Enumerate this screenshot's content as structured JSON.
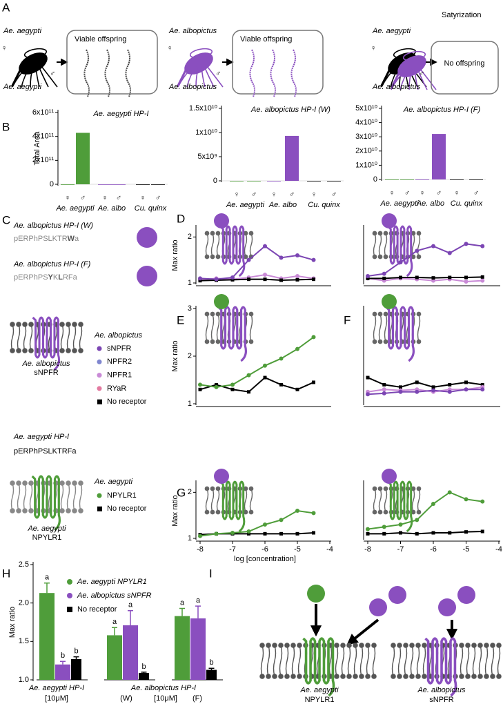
{
  "panel_labels": {
    "a": "A",
    "b": "B",
    "c": "C",
    "d": "D",
    "e": "E",
    "f": "F",
    "g": "G",
    "h": "H",
    "i": "I"
  },
  "symbols": {
    "female": "♀",
    "male": "♂"
  },
  "panel_a": {
    "title": "Satyrization",
    "crosses": [
      {
        "female": "Ae. aegypti",
        "male": "Ae. aegypti",
        "result": "Viable offspring"
      },
      {
        "female": "Ae. albopictus",
        "male": "Ae. albopictus",
        "result": "Viable offspring"
      },
      {
        "female": "Ae. aegypti",
        "male": "Ae. albopictus",
        "result": "No offspring"
      }
    ]
  },
  "panel_c": {
    "peptides": [
      {
        "name": "Ae. albopictus HP-I (W)",
        "seq": [
          "pERPhPSLKTR",
          "W",
          "a"
        ]
      },
      {
        "name": "Ae. albopictus HP-I (F)",
        "seq": [
          "pERPhPS",
          "Y",
          "K",
          "L",
          "RFa"
        ]
      }
    ],
    "albo_species": "Ae. albopictus",
    "albo_receptor": [
      "Ae. albopictus",
      "sNPFR"
    ],
    "albo_legend": [
      {
        "name": "sNPFR",
        "color": "#7b45b3",
        "marker": "circle"
      },
      {
        "name": "NPFR2",
        "color": "#7f86cf",
        "marker": "circle"
      },
      {
        "name": "NPFR1",
        "color": "#c98ad6",
        "marker": "circle"
      },
      {
        "name": "RYaR",
        "color": "#e37aa0",
        "marker": "circle"
      },
      {
        "name": "No receptor",
        "color": "#000000",
        "marker": "square"
      }
    ],
    "aeg_peptide": "Ae. aegypti HP-I",
    "aeg_seq": "pERPhPSLKTRFa",
    "aeg_species": "Ae. aegypti",
    "aeg_legend": [
      {
        "name": "NPYLR1",
        "color": "#4f9d3a",
        "marker": "circle"
      },
      {
        "name": "No receptor",
        "color": "#000000",
        "marker": "square"
      }
    ],
    "aeg_receptor": [
      "Ae. aegypti",
      "NPYLR1"
    ]
  },
  "panel_i": {
    "receptors": [
      [
        "Ae. aegypti",
        "NPYLR1"
      ],
      [
        "Ae. albopictus",
        "sNPFR"
      ]
    ]
  },
  "chart_data": [
    {
      "type": "bar",
      "title": "Ae. aegypti HP-I",
      "title_color": "#4f9d3a",
      "ylabel": "Total Area",
      "categories": [
        "♀",
        "♂",
        "♀",
        "♂",
        "♀",
        "♂"
      ],
      "group_labels": [
        "Ae. aegypti",
        "Ae. albo",
        "Cu. quinx"
      ],
      "colors": [
        "#4f9d3a",
        "#4f9d3a",
        "#8a4fbf",
        "#8a4fbf",
        "#000000",
        "#000000"
      ],
      "values": [
        0,
        430000000000,
        0,
        0,
        0,
        0
      ],
      "ylim": [
        0,
        600000000000
      ],
      "yticks": [
        0,
        {
          "value": 200000000000,
          "label": "2x10¹¹"
        },
        {
          "value": 400000000000,
          "label": "4x10¹¹"
        },
        {
          "value": 600000000000,
          "label": "6x10¹¹"
        }
      ]
    },
    {
      "type": "bar",
      "title": "Ae. albopictus HP-I (W)",
      "title_color": "#8a4fbf",
      "categories": [
        "♀",
        "♂",
        "♀",
        "♂",
        "♀",
        "♂"
      ],
      "group_labels": [
        "Ae. aegypti",
        "Ae. albo",
        "Cu. quinx"
      ],
      "colors": [
        "#4f9d3a",
        "#4f9d3a",
        "#8a4fbf",
        "#8a4fbf",
        "#000000",
        "#000000"
      ],
      "values": [
        0,
        0,
        0,
        9300000000,
        0,
        0
      ],
      "ylim": [
        0,
        15000000000
      ],
      "yticks": [
        0,
        {
          "value": 5000000000,
          "label": "5x10⁹"
        },
        {
          "value": 10000000000,
          "label": "1x10¹⁰"
        },
        {
          "value": 15000000000,
          "label": "1.5x10¹⁰"
        }
      ]
    },
    {
      "type": "bar",
      "title": "Ae. albopictus HP-I (F)",
      "title_color": "#8a4fbf",
      "categories": [
        "♀",
        "♂",
        "♀",
        "♂",
        "♀",
        "♂"
      ],
      "group_labels": [
        "Ae. aegypti",
        "Ae. albo",
        "Cu. quinx"
      ],
      "colors": [
        "#4f9d3a",
        "#4f9d3a",
        "#8a4fbf",
        "#8a4fbf",
        "#000000",
        "#000000"
      ],
      "values": [
        0,
        0,
        0,
        32000000000,
        0,
        0
      ],
      "ylim": [
        0,
        50000000000
      ],
      "yticks": [
        0,
        {
          "value": 10000000000,
          "label": "1x10¹⁰"
        },
        {
          "value": 20000000000,
          "label": "2x10¹⁰"
        },
        {
          "value": 30000000000,
          "label": "3x10¹⁰"
        },
        {
          "value": 40000000000,
          "label": "4x10¹⁰"
        },
        {
          "value": 50000000000,
          "label": "5x10¹⁰"
        }
      ]
    },
    {
      "type": "line",
      "ylabel": "Max ratio",
      "x": [
        -8,
        -7.5,
        -7,
        -6.5,
        -6,
        -5.5,
        -5,
        -4.5
      ],
      "xlim": [
        -8,
        -4
      ],
      "ylim": [
        1,
        2.2
      ],
      "yticks": [
        1,
        2
      ],
      "series": [
        {
          "color": "#c98ad6",
          "marker": "circle",
          "values": [
            1.07,
            1.1,
            1.08,
            1.12,
            1.18,
            1.1,
            1.15,
            1.1
          ]
        },
        {
          "color": "#000000",
          "marker": "square",
          "values": [
            1.05,
            1.06,
            1.07,
            1.08,
            1.08,
            1.06,
            1.07,
            1.08
          ]
        },
        {
          "color": "#7b45b3",
          "marker": "circle",
          "values": [
            1.1,
            1.08,
            1.12,
            1.5,
            1.8,
            1.55,
            1.6,
            1.5
          ]
        }
      ]
    },
    {
      "type": "line",
      "x": [
        -8,
        -7.5,
        -7,
        -6.5,
        -6,
        -5.5,
        -5,
        -4.5
      ],
      "xlim": [
        -8,
        -4
      ],
      "ylim": [
        1,
        2.2
      ],
      "series": [
        {
          "color": "#c98ad6",
          "marker": "circle",
          "values": [
            1.1,
            1.05,
            1.1,
            1.08,
            1.05,
            1.08,
            1.03,
            1.05
          ]
        },
        {
          "color": "#000000",
          "marker": "square",
          "values": [
            1.1,
            1.1,
            1.12,
            1.12,
            1.11,
            1.12,
            1.12,
            1.13
          ]
        },
        {
          "color": "#7b45b3",
          "marker": "circle",
          "values": [
            1.15,
            1.2,
            1.45,
            1.7,
            1.8,
            1.65,
            1.85,
            1.8
          ]
        }
      ]
    },
    {
      "type": "line",
      "ylabel": "Max ratio",
      "x": [
        -8,
        -7.5,
        -7,
        -6.5,
        -6,
        -5.5,
        -5,
        -4.5
      ],
      "xlim": [
        -8,
        -4
      ],
      "ylim": [
        1,
        3
      ],
      "yticks": [
        1,
        2,
        3
      ],
      "series": [
        {
          "color": "#000000",
          "marker": "square",
          "values": [
            1.3,
            1.4,
            1.3,
            1.25,
            1.55,
            1.4,
            1.3,
            1.45
          ]
        },
        {
          "color": "#4f9d3a",
          "marker": "circle",
          "values": [
            1.4,
            1.35,
            1.4,
            1.6,
            1.8,
            1.95,
            2.15,
            2.4
          ]
        }
      ]
    },
    {
      "type": "line",
      "x": [
        -8,
        -7.5,
        -7,
        -6.5,
        -6,
        -5.5,
        -5,
        -4.5
      ],
      "xlim": [
        -8,
        -4
      ],
      "ylim": [
        1,
        3
      ],
      "series": [
        {
          "color": "#000000",
          "marker": "square",
          "values": [
            1.55,
            1.4,
            1.35,
            1.45,
            1.35,
            1.4,
            1.45,
            1.4
          ]
        },
        {
          "color": "#c98ad6",
          "marker": "circle",
          "values": [
            1.25,
            1.3,
            1.28,
            1.3,
            1.25,
            1.3,
            1.3,
            1.35
          ]
        },
        {
          "color": "#7b45b3",
          "marker": "circle",
          "values": [
            1.2,
            1.22,
            1.25,
            1.25,
            1.28,
            1.25,
            1.3,
            1.3
          ]
        }
      ]
    },
    {
      "type": "line",
      "ylabel": "Max ratio",
      "xlabel": "log [concentration]",
      "x": [
        -8,
        -7.5,
        -7,
        -6.5,
        -6,
        -5.5,
        -5,
        -4.5
      ],
      "xlim": [
        -8,
        -4
      ],
      "xticks": [
        -8,
        -7,
        -6,
        -5,
        -4
      ],
      "ylim": [
        1,
        2.2
      ],
      "yticks": [
        1,
        2
      ],
      "series": [
        {
          "color": "#000000",
          "marker": "square",
          "values": [
            1.08,
            1.1,
            1.1,
            1.1,
            1.1,
            1.1,
            1.1,
            1.12
          ]
        },
        {
          "color": "#4f9d3a",
          "marker": "circle",
          "values": [
            1.05,
            1.1,
            1.12,
            1.15,
            1.3,
            1.4,
            1.6,
            1.55
          ]
        }
      ]
    },
    {
      "type": "line",
      "x": [
        -8,
        -7.5,
        -7,
        -6.5,
        -6,
        -5.5,
        -5,
        -4.5
      ],
      "xlim": [
        -8,
        -4
      ],
      "xticks": [
        -8,
        -7,
        -6,
        -5,
        -4
      ],
      "ylim": [
        1,
        2.2
      ],
      "series": [
        {
          "color": "#000000",
          "marker": "square",
          "values": [
            1.1,
            1.1,
            1.12,
            1.1,
            1.12,
            1.12,
            1.14,
            1.15
          ]
        },
        {
          "color": "#4f9d3a",
          "marker": "circle",
          "values": [
            1.2,
            1.25,
            1.3,
            1.4,
            1.75,
            2.0,
            1.85,
            1.8
          ]
        }
      ]
    },
    {
      "type": "groupbar",
      "ylabel": "Max ratio",
      "categories": [
        null,
        null,
        null
      ],
      "group_labels": [
        "Ae. aegypti HP-I",
        "Ae. albopictus HP-I"
      ],
      "sub_labels": [
        "[10μM]",
        "(W)",
        "[10μM]",
        "(F)"
      ],
      "ylim": [
        1,
        2.5
      ],
      "yticks": [
        {
          "value": 1,
          "label": "1.0"
        },
        1.5,
        {
          "value": 2,
          "label": "2.0"
        },
        2.5
      ],
      "series": [
        {
          "name": "Ae. aegypti NPYLR1",
          "color": "#4f9d3a",
          "values": [
            2.13,
            1.58,
            1.83
          ],
          "errors": [
            0.13,
            0.1,
            0.1
          ],
          "letters": [
            "a",
            "a",
            "a"
          ]
        },
        {
          "name": "Ae. albopictus sNPFR",
          "color": "#8a4fbf",
          "values": [
            1.2,
            1.71,
            1.8
          ],
          "errors": [
            0.04,
            0.19,
            0.16
          ],
          "letters": [
            "b",
            "a",
            "a"
          ]
        },
        {
          "name": "No receptor",
          "color": "#000000",
          "values": [
            1.27,
            1.09,
            1.13
          ],
          "errors": [
            0.03,
            0.01,
            0.02
          ],
          "letters": [
            "b",
            "b",
            "b"
          ]
        }
      ]
    }
  ]
}
